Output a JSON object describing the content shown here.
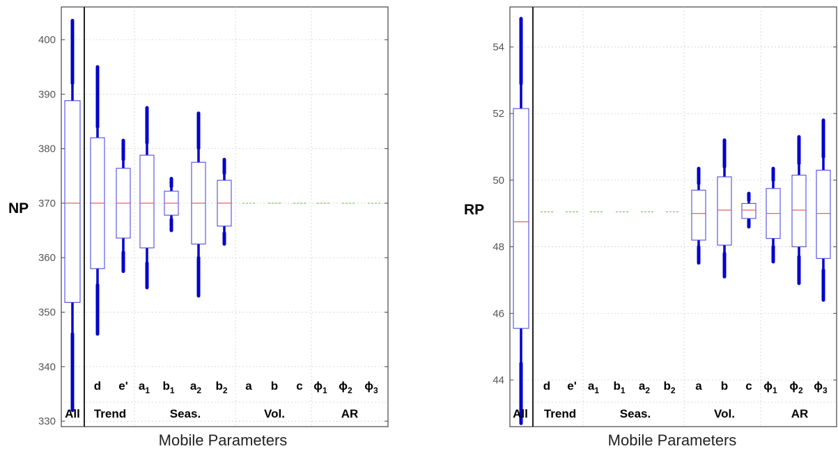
{
  "chart_data": [
    {
      "type": "box",
      "ylabel": "NP",
      "xlabel": "Mobile Parameters",
      "ylim": [
        329,
        406
      ],
      "yticks": [
        330,
        340,
        350,
        360,
        370,
        380,
        390,
        400
      ],
      "grid": true,
      "parameter_labels": [
        {
          "base": "d",
          "sub": ""
        },
        {
          "base": "e'",
          "sub": ""
        },
        {
          "base": "a",
          "sub": "1"
        },
        {
          "base": "b",
          "sub": "1"
        },
        {
          "base": "a",
          "sub": "2"
        },
        {
          "base": "b",
          "sub": "2"
        },
        {
          "base": "a",
          "sub": ""
        },
        {
          "base": "b",
          "sub": ""
        },
        {
          "base": "c",
          "sub": ""
        },
        {
          "base": "ϕ",
          "sub": "1"
        },
        {
          "base": "ϕ",
          "sub": "2"
        },
        {
          "base": "ϕ",
          "sub": "3"
        }
      ],
      "group_labels": [
        "All",
        "Trend",
        "Seas.",
        "Vol.",
        "AR"
      ],
      "colors": {
        "box": "#4a4adf",
        "median": "#e05050",
        "outlier": "#0000cc",
        "flat": "#6fbf5a"
      },
      "boxes": [
        {
          "name": "All",
          "q1": 351.8,
          "median": 370.0,
          "q3": 388.8,
          "wlo": 346.0,
          "whi": 392.0,
          "outlo": 332.0,
          "outhi": 403.5
        },
        {
          "name": "d",
          "q1": 358.0,
          "median": 370.0,
          "q3": 382.0,
          "wlo": 355.0,
          "whi": 384.0,
          "outlo": 346.0,
          "outhi": 395.0
        },
        {
          "name": "e'",
          "q1": 363.6,
          "median": 370.0,
          "q3": 376.4,
          "wlo": 361.0,
          "whi": 378.0,
          "outlo": 357.5,
          "outhi": 381.5
        },
        {
          "name": "a1",
          "q1": 361.8,
          "median": 370.0,
          "q3": 378.8,
          "wlo": 359.0,
          "whi": 381.0,
          "outlo": 354.5,
          "outhi": 387.5
        },
        {
          "name": "b1",
          "q1": 367.8,
          "median": 370.0,
          "q3": 372.2,
          "wlo": 367.0,
          "whi": 373.0,
          "outlo": 365.0,
          "outhi": 374.5
        },
        {
          "name": "a2",
          "q1": 362.5,
          "median": 370.0,
          "q3": 377.5,
          "wlo": 360.0,
          "whi": 380.0,
          "outlo": 353.0,
          "outhi": 386.5
        },
        {
          "name": "b2",
          "q1": 365.8,
          "median": 370.0,
          "q3": 374.2,
          "wlo": 364.5,
          "whi": 375.5,
          "outlo": 362.5,
          "outhi": 378.0
        },
        {
          "name": "a",
          "flat": 370.0
        },
        {
          "name": "b",
          "flat": 370.0
        },
        {
          "name": "c",
          "flat": 370.0
        },
        {
          "name": "phi1",
          "flat": 370.0
        },
        {
          "name": "phi2",
          "flat": 370.0
        },
        {
          "name": "phi3",
          "flat": 370.0
        }
      ]
    },
    {
      "type": "box",
      "ylabel": "RP",
      "xlabel": "Mobile Parameters",
      "ylim": [
        42.6,
        55.2
      ],
      "yticks": [
        44,
        46,
        48,
        50,
        52,
        54
      ],
      "grid": true,
      "parameter_labels": [
        {
          "base": "d",
          "sub": ""
        },
        {
          "base": "e'",
          "sub": ""
        },
        {
          "base": "a",
          "sub": "1"
        },
        {
          "base": "b",
          "sub": "1"
        },
        {
          "base": "a",
          "sub": "2"
        },
        {
          "base": "b",
          "sub": "2"
        },
        {
          "base": "a",
          "sub": ""
        },
        {
          "base": "b",
          "sub": ""
        },
        {
          "base": "c",
          "sub": ""
        },
        {
          "base": "ϕ",
          "sub": "1"
        },
        {
          "base": "ϕ",
          "sub": "2"
        },
        {
          "base": "ϕ",
          "sub": "3"
        }
      ],
      "group_labels": [
        "All",
        "Trend",
        "Seas.",
        "Vol.",
        "AR"
      ],
      "colors": {
        "box": "#4a4adf",
        "median": "#e05050",
        "outlier": "#0000cc",
        "flat": "#6fbf5a"
      },
      "boxes": [
        {
          "name": "All",
          "q1": 45.55,
          "median": 48.75,
          "q3": 52.15,
          "wlo": 44.5,
          "whi": 52.9,
          "outlo": 42.7,
          "outhi": 54.85
        },
        {
          "name": "d",
          "flat": 49.05
        },
        {
          "name": "e'",
          "flat": 49.05
        },
        {
          "name": "a1",
          "flat": 49.05
        },
        {
          "name": "b1",
          "flat": 49.05
        },
        {
          "name": "a2",
          "flat": 49.05
        },
        {
          "name": "b2",
          "flat": 49.05
        },
        {
          "name": "a",
          "q1": 48.2,
          "median": 49.0,
          "q3": 49.7,
          "wlo": 48.0,
          "whi": 49.9,
          "outlo": 47.5,
          "outhi": 50.35
        },
        {
          "name": "b",
          "q1": 48.05,
          "median": 49.1,
          "q3": 50.1,
          "wlo": 47.8,
          "whi": 50.4,
          "outlo": 47.1,
          "outhi": 51.2
        },
        {
          "name": "c",
          "q1": 48.85,
          "median": 49.1,
          "q3": 49.3,
          "wlo": 48.8,
          "whi": 49.4,
          "outlo": 48.6,
          "outhi": 49.6
        },
        {
          "name": "phi1",
          "q1": 48.25,
          "median": 49.0,
          "q3": 49.75,
          "wlo": 48.0,
          "whi": 50.0,
          "outlo": 47.55,
          "outhi": 50.35
        },
        {
          "name": "phi2",
          "q1": 48.0,
          "median": 49.1,
          "q3": 50.15,
          "wlo": 47.7,
          "whi": 50.5,
          "outlo": 46.9,
          "outhi": 51.3
        },
        {
          "name": "phi3",
          "q1": 47.65,
          "median": 49.0,
          "q3": 50.3,
          "wlo": 47.3,
          "whi": 50.7,
          "outlo": 46.4,
          "outhi": 51.8
        }
      ]
    }
  ]
}
